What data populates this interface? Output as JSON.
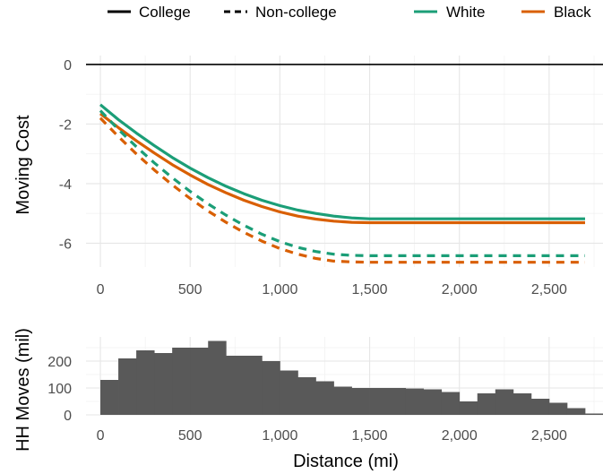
{
  "chart_data": [
    {
      "type": "line",
      "ylabel": "Moving Cost",
      "xlim": [
        -80,
        2800
      ],
      "ylim": [
        -6.8,
        0.3
      ],
      "x_ticks": [
        0,
        500,
        1000,
        1500,
        2000,
        2500
      ],
      "x_tick_labels": [
        "0",
        "500",
        "1,000",
        "1,500",
        "2,000",
        "2,500"
      ],
      "y_ticks": [
        0,
        -2,
        -4,
        -6
      ],
      "y_tick_labels": [
        "0",
        "-2",
        "-4",
        "-6"
      ],
      "grid": true,
      "reference_line": 0,
      "legend": {
        "placement": "top",
        "linetype_items": [
          {
            "label": "College",
            "dash": "solid"
          },
          {
            "label": "Non-college",
            "dash": "dashed"
          }
        ],
        "color_items": [
          {
            "label": "White",
            "color": "#1b9e77"
          },
          {
            "label": "Black",
            "color": "#d95f02"
          }
        ]
      },
      "series": [
        {
          "race": "White",
          "education": "College",
          "color": "#1b9e77",
          "dash": "solid",
          "x": [
            0,
            100,
            200,
            300,
            400,
            500,
            600,
            700,
            800,
            900,
            1000,
            1100,
            1200,
            1300,
            1400,
            1500,
            1600,
            2000,
            2500,
            2700
          ],
          "y": [
            -1.35,
            -1.85,
            -2.3,
            -2.72,
            -3.12,
            -3.48,
            -3.8,
            -4.09,
            -4.34,
            -4.56,
            -4.74,
            -4.89,
            -5.0,
            -5.09,
            -5.15,
            -5.18,
            -5.18,
            -5.18,
            -5.18,
            -5.18
          ]
        },
        {
          "race": "Black",
          "education": "College",
          "color": "#d95f02",
          "dash": "solid",
          "x": [
            0,
            100,
            200,
            300,
            400,
            500,
            600,
            700,
            800,
            900,
            1000,
            1100,
            1200,
            1300,
            1400,
            1500,
            1600,
            2000,
            2500,
            2700
          ],
          "y": [
            -1.65,
            -2.12,
            -2.56,
            -2.97,
            -3.36,
            -3.71,
            -4.03,
            -4.31,
            -4.56,
            -4.77,
            -4.95,
            -5.09,
            -5.19,
            -5.26,
            -5.3,
            -5.31,
            -5.31,
            -5.31,
            -5.31,
            -5.31
          ]
        },
        {
          "race": "White",
          "education": "Non-college",
          "color": "#1b9e77",
          "dash": "dashed",
          "x": [
            0,
            100,
            200,
            300,
            400,
            500,
            600,
            700,
            800,
            900,
            1000,
            1100,
            1200,
            1300,
            1400,
            1500,
            1600,
            2000,
            2500,
            2700
          ],
          "y": [
            -1.55,
            -2.18,
            -2.76,
            -3.3,
            -3.8,
            -4.26,
            -4.68,
            -5.06,
            -5.4,
            -5.7,
            -5.95,
            -6.14,
            -6.28,
            -6.37,
            -6.41,
            -6.42,
            -6.42,
            -6.42,
            -6.42,
            -6.42
          ]
        },
        {
          "race": "Black",
          "education": "Non-college",
          "color": "#d95f02",
          "dash": "dashed",
          "x": [
            0,
            100,
            200,
            300,
            400,
            500,
            600,
            700,
            800,
            900,
            1000,
            1100,
            1200,
            1300,
            1400,
            1500,
            1600,
            2000,
            2500,
            2700
          ],
          "y": [
            -1.8,
            -2.42,
            -3.0,
            -3.54,
            -4.04,
            -4.5,
            -4.92,
            -5.3,
            -5.64,
            -5.93,
            -6.18,
            -6.37,
            -6.51,
            -6.6,
            -6.63,
            -6.64,
            -6.64,
            -6.64,
            -6.64,
            -6.64
          ]
        }
      ]
    },
    {
      "type": "bar",
      "subtype": "histogram",
      "xlabel": "Distance (mi)",
      "ylabel": "HH Moves (mil)",
      "xlim": [
        -80,
        2800
      ],
      "ylim": [
        0,
        290
      ],
      "x_ticks": [
        0,
        500,
        1000,
        1500,
        2000,
        2500
      ],
      "x_tick_labels": [
        "0",
        "500",
        "1,000",
        "1,500",
        "2,000",
        "2,500"
      ],
      "y_ticks": [
        0,
        100,
        200
      ],
      "y_tick_labels": [
        "0",
        "100",
        "200"
      ],
      "grid": true,
      "color": "#595959",
      "bin_width": 100,
      "bins": [
        50,
        150,
        250,
        350,
        450,
        550,
        650,
        750,
        850,
        950,
        1050,
        1150,
        1250,
        1350,
        1450,
        1550,
        1650,
        1750,
        1850,
        1950,
        2050,
        2150,
        2250,
        2350,
        2450,
        2550,
        2650,
        2750
      ],
      "values": [
        130,
        210,
        240,
        230,
        250,
        250,
        275,
        220,
        220,
        200,
        165,
        140,
        125,
        105,
        100,
        100,
        100,
        98,
        95,
        85,
        50,
        80,
        95,
        80,
        60,
        45,
        25,
        5
      ]
    }
  ]
}
